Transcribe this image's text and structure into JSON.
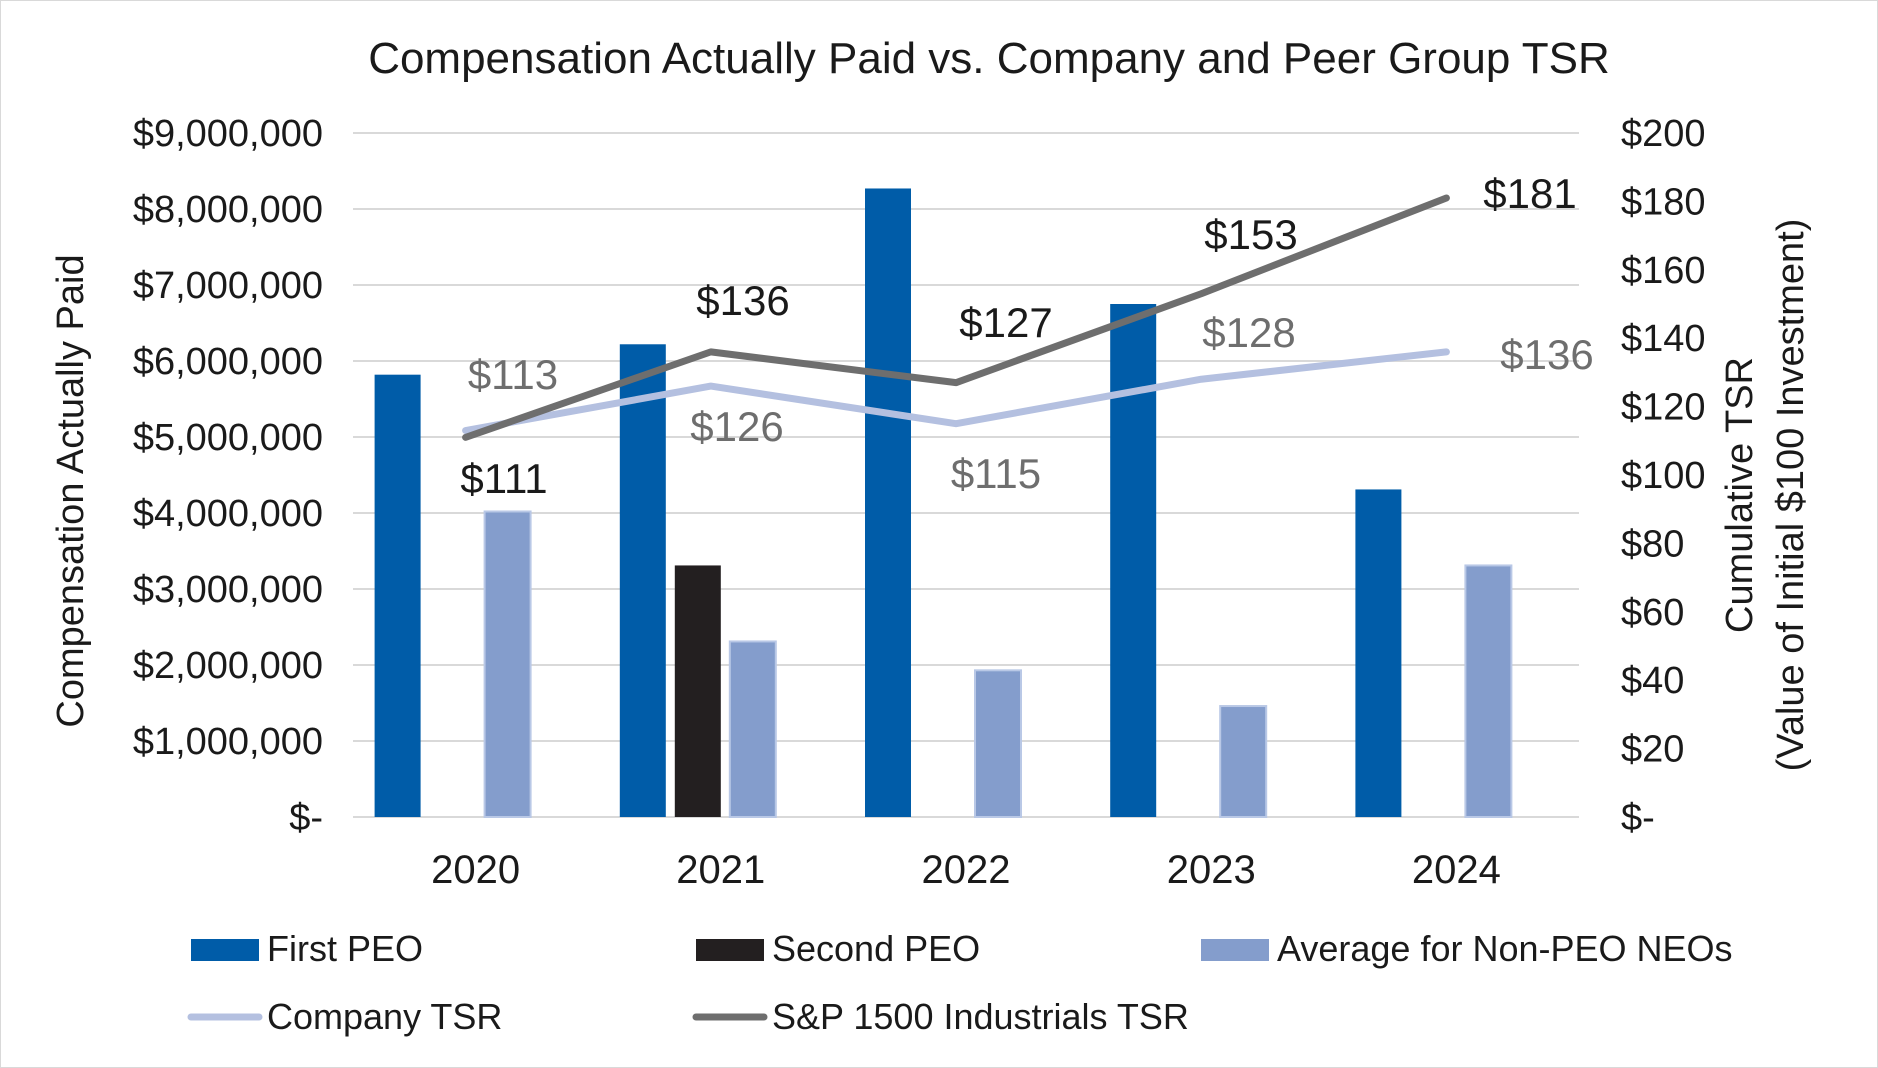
{
  "chart_data": {
    "type": "bar",
    "title": "Compensation Actually Paid vs. Company and Peer Group TSR",
    "categories": [
      "2020",
      "2021",
      "2022",
      "2023",
      "2024"
    ],
    "ylabel": "Compensation Actually Paid",
    "y2label_line1": "Cumulative TSR",
    "y2label_line2": "(Value of Initial $100 Investment)",
    "ylim": [
      0,
      9000000
    ],
    "y2lim": [
      0,
      200
    ],
    "y_ticks": [
      "$-",
      "$1,000,000",
      "$2,000,000",
      "$3,000,000",
      "$4,000,000",
      "$5,000,000",
      "$6,000,000",
      "$7,000,000",
      "$8,000,000",
      "$9,000,000"
    ],
    "y2_ticks": [
      "$-",
      "$20",
      "$40",
      "$60",
      "$80",
      "$100",
      "$120",
      "$140",
      "$160",
      "$180",
      "$200"
    ],
    "grid": true,
    "legend_position": "bottom",
    "bar_series": [
      {
        "name": "First PEO",
        "color": "#005ca8",
        "values": [
          5820000,
          6220000,
          8270000,
          6750000,
          4310000
        ]
      },
      {
        "name": "Second PEO",
        "color": "#231f20",
        "values": [
          null,
          3310000,
          null,
          null,
          null
        ]
      },
      {
        "name": "Average for Non-PEO NEOs",
        "color": "#849dcc",
        "values": [
          4020000,
          2310000,
          1930000,
          1460000,
          3310000
        ]
      }
    ],
    "line_series": [
      {
        "name": "Company TSR",
        "color": "#b4c0e0",
        "label_color": "#6e6e6e",
        "values": [
          113,
          126,
          115,
          128,
          136
        ],
        "labels": [
          "$113",
          "$126",
          "$115",
          "$128",
          "$136"
        ]
      },
      {
        "name": "S&P 1500 Industrials TSR",
        "color": "#6e6e6e",
        "label_color": "#1a1a1a",
        "values": [
          111,
          136,
          127,
          153,
          181
        ],
        "labels": [
          "$111",
          "$136",
          "$127",
          "$153",
          "$181"
        ]
      }
    ]
  }
}
